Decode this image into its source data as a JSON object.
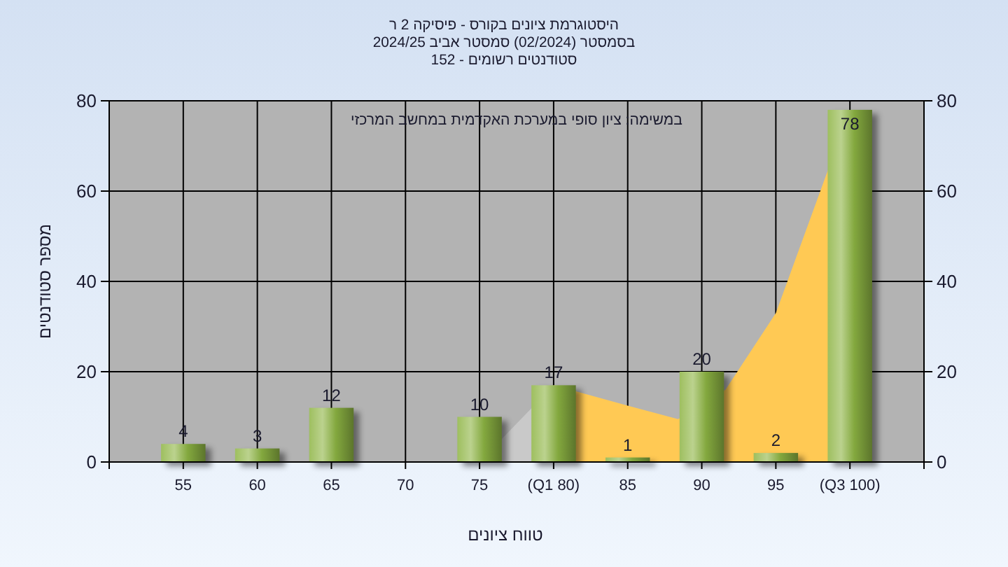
{
  "chart_data": {
    "type": "bar",
    "title": "היסטוגרמת ציונים בקורס - פיסיקה 2 ר\nבסמסטר (02/2024) סמסטר אביב 2024/25\nסטודנטים רשומים - 152",
    "xlabel": "טווח ציונים",
    "ylabel": "מספר סטודנטים",
    "annotations": [
      "במשימה: ציון סופי במערכת האקדמית במחשב המרכזי"
    ],
    "x": [
      55,
      60,
      65,
      70,
      75,
      80,
      85,
      90,
      95,
      100
    ],
    "series": [
      {
        "type": "area",
        "color": "#c9c9c9",
        "x": [
          75,
          80
        ],
        "values": [
          0,
          17
        ]
      },
      {
        "type": "area",
        "color": "#ffc954",
        "x": [
          80,
          85,
          88.4,
          91.6,
          95,
          100
        ],
        "values": [
          17,
          12.5,
          9.5,
          16,
          33,
          78
        ]
      },
      {
        "color": "#8db443",
        "values": [
          4,
          3,
          12,
          0,
          10,
          17,
          1,
          20,
          2,
          78
        ],
        "value_labels": [
          "4",
          "3",
          "12",
          null,
          "10",
          "17",
          "1",
          "20",
          "2",
          "78"
        ]
      }
    ],
    "xlim": [
      50,
      105
    ],
    "xticks": [
      55,
      60,
      65,
      70,
      75,
      {
        "value": 80,
        "label": "(Q1 80)"
      },
      85,
      90,
      95,
      {
        "value": 100,
        "label": "(Q3 100)"
      }
    ],
    "ylim": [
      0,
      80
    ],
    "yticks": [
      0,
      20,
      40,
      60,
      80
    ],
    "y2lim": [
      0,
      80
    ],
    "y2ticks": [
      0,
      20,
      40,
      60,
      80
    ],
    "grid": true
  }
}
